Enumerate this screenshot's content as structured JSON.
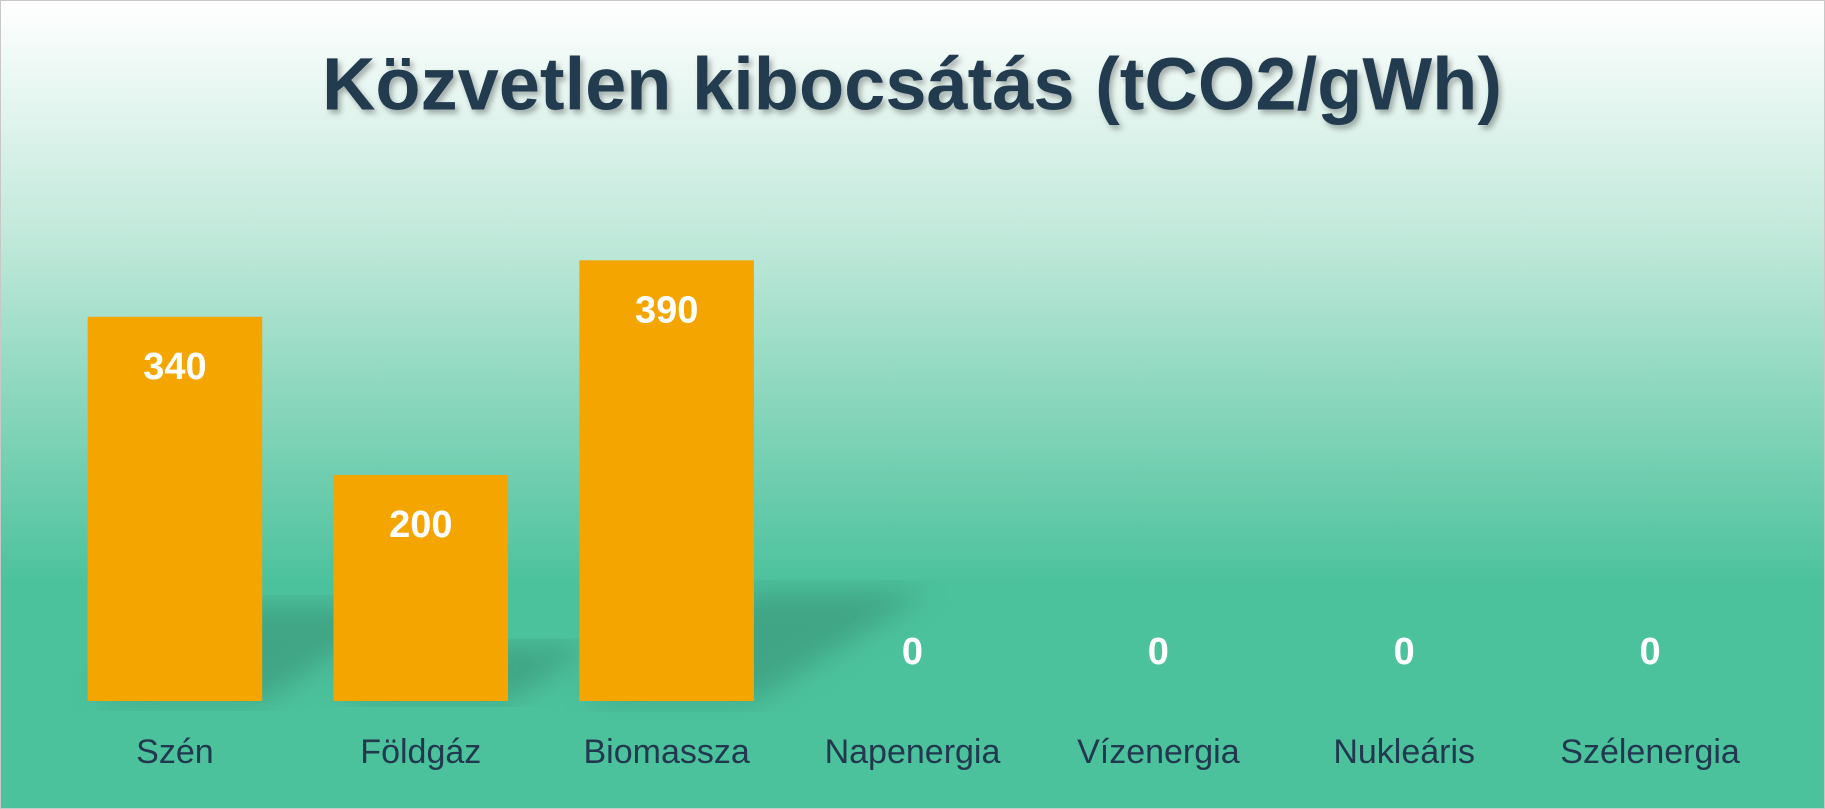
{
  "chart_data": {
    "type": "bar",
    "title": "Közvetlen kibocsátás (tCO2/gWh)",
    "categories": [
      "Szén",
      "Földgáz",
      "Biomassza",
      "Napenergia",
      "Vízenergia",
      "Nukleáris",
      "Szélenergia"
    ],
    "values": [
      340,
      200,
      390,
      0,
      0,
      0,
      0
    ],
    "color": "#f5a500",
    "ylim": [
      0,
      400
    ]
  }
}
